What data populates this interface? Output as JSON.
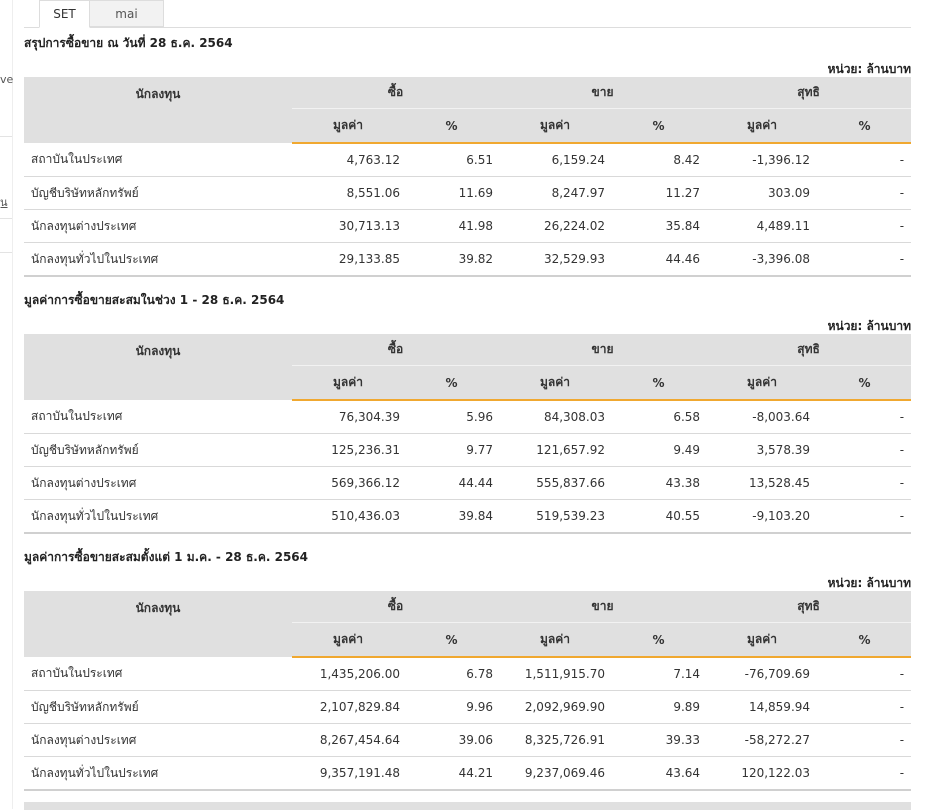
{
  "left_edge": {
    "frag1": "ve",
    "frag2": "ุ้น"
  },
  "tabs": [
    {
      "label": "SET",
      "active": true
    },
    {
      "label": "mai",
      "active": false
    }
  ],
  "headers": {
    "investor": "นักลงทุน",
    "buy": "ซื้อ",
    "sell": "ขาย",
    "net": "สุทธิ",
    "value": "มูลค่า",
    "pct": "%"
  },
  "unit_label": "หน่วย: ล้านบาท",
  "sections": [
    {
      "title": "สรุปการซื้อขาย ณ วันที่ 28 ธ.ค. 2564",
      "rows": [
        {
          "name": "สถาบันในประเทศ",
          "buy": "4,763.12",
          "buy_pct": "6.51",
          "sell": "6,159.24",
          "sell_pct": "8.42",
          "net": "-1,396.12",
          "net_pct": "-"
        },
        {
          "name": "บัญชีบริษัทหลักทรัพย์",
          "buy": "8,551.06",
          "buy_pct": "11.69",
          "sell": "8,247.97",
          "sell_pct": "11.27",
          "net": "303.09",
          "net_pct": "-"
        },
        {
          "name": "นักลงทุนต่างประเทศ",
          "buy": "30,713.13",
          "buy_pct": "41.98",
          "sell": "26,224.02",
          "sell_pct": "35.84",
          "net": "4,489.11",
          "net_pct": "-"
        },
        {
          "name": "นักลงทุนทั่วไปในประเทศ",
          "buy": "29,133.85",
          "buy_pct": "39.82",
          "sell": "32,529.93",
          "sell_pct": "44.46",
          "net": "-3,396.08",
          "net_pct": "-"
        }
      ]
    },
    {
      "title": "มูลค่าการซื้อขายสะสมในช่วง 1 - 28 ธ.ค. 2564",
      "rows": [
        {
          "name": "สถาบันในประเทศ",
          "buy": "76,304.39",
          "buy_pct": "5.96",
          "sell": "84,308.03",
          "sell_pct": "6.58",
          "net": "-8,003.64",
          "net_pct": "-"
        },
        {
          "name": "บัญชีบริษัทหลักทรัพย์",
          "buy": "125,236.31",
          "buy_pct": "9.77",
          "sell": "121,657.92",
          "sell_pct": "9.49",
          "net": "3,578.39",
          "net_pct": "-"
        },
        {
          "name": "นักลงทุนต่างประเทศ",
          "buy": "569,366.12",
          "buy_pct": "44.44",
          "sell": "555,837.66",
          "sell_pct": "43.38",
          "net": "13,528.45",
          "net_pct": "-"
        },
        {
          "name": "นักลงทุนทั่วไปในประเทศ",
          "buy": "510,436.03",
          "buy_pct": "39.84",
          "sell": "519,539.23",
          "sell_pct": "40.55",
          "net": "-9,103.20",
          "net_pct": "-"
        }
      ]
    },
    {
      "title": "มูลค่าการซื้อขายสะสมตั้งแต่ 1 ม.ค. - 28 ธ.ค. 2564",
      "rows": [
        {
          "name": "สถาบันในประเทศ",
          "buy": "1,435,206.00",
          "buy_pct": "6.78",
          "sell": "1,511,915.70",
          "sell_pct": "7.14",
          "net": "-76,709.69",
          "net_pct": "-"
        },
        {
          "name": "บัญชีบริษัทหลักทรัพย์",
          "buy": "2,107,829.84",
          "buy_pct": "9.96",
          "sell": "2,092,969.90",
          "sell_pct": "9.89",
          "net": "14,859.94",
          "net_pct": "-"
        },
        {
          "name": "นักลงทุนต่างประเทศ",
          "buy": "8,267,454.64",
          "buy_pct": "39.06",
          "sell": "8,325,726.91",
          "sell_pct": "39.33",
          "net": "-58,272.27",
          "net_pct": "-"
        },
        {
          "name": "นักลงทุนทั่วไปในประเทศ",
          "buy": "9,357,191.48",
          "buy_pct": "44.21",
          "sell": "9,237,069.46",
          "sell_pct": "43.64",
          "net": "120,122.03",
          "net_pct": "-"
        }
      ]
    }
  ],
  "colors": {
    "positive": "#2f8a2f",
    "negative": "#e02020",
    "accent": "#f0a830",
    "header_bg": "#e0e0e0"
  }
}
